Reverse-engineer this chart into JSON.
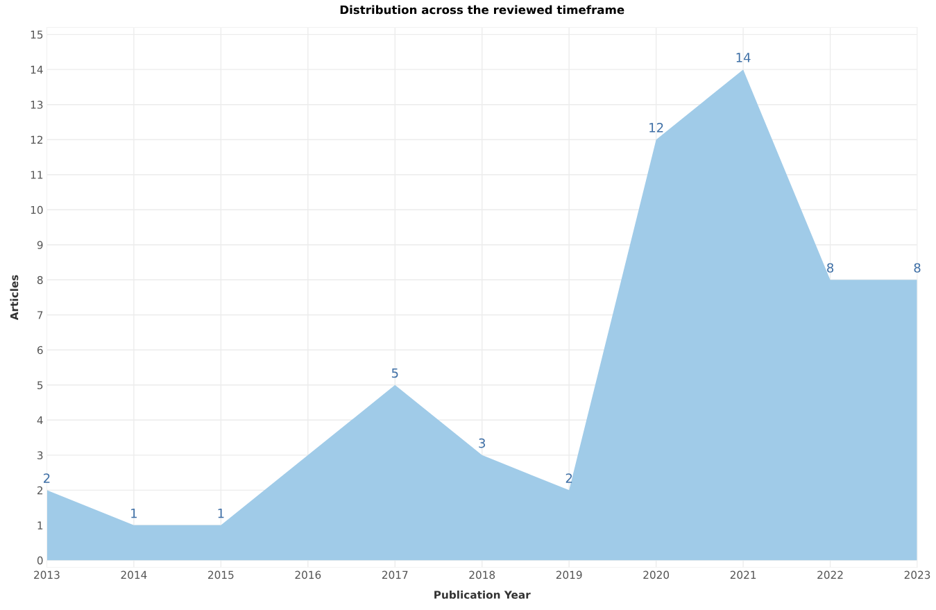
{
  "chart_data": {
    "type": "area",
    "title": "Distribution across the reviewed timeframe",
    "xlabel": "Publication Year",
    "ylabel": "Articles",
    "x": [
      2013,
      2014,
      2015,
      2016,
      2017,
      2018,
      2019,
      2020,
      2021,
      2022,
      2023
    ],
    "series": [
      {
        "color": "#a0cbe8",
        "values": [
          2,
          1,
          1,
          3,
          5,
          3,
          2,
          12,
          14,
          8,
          8
        ],
        "value_labels": [
          "2",
          "1",
          "1",
          null,
          "5",
          "3",
          "2",
          "12",
          "14",
          "8",
          "8"
        ]
      }
    ],
    "xlim": [
      2013,
      2023
    ],
    "xticks": [
      2013,
      2014,
      2015,
      2016,
      2017,
      2018,
      2019,
      2020,
      2021,
      2022,
      2023
    ],
    "ylim": [
      -0.2,
      15.2
    ],
    "yticks": [
      0,
      1,
      2,
      3,
      4,
      5,
      6,
      7,
      8,
      9,
      10,
      11,
      12,
      13,
      14,
      15
    ],
    "grid": true,
    "legend": false
  }
}
